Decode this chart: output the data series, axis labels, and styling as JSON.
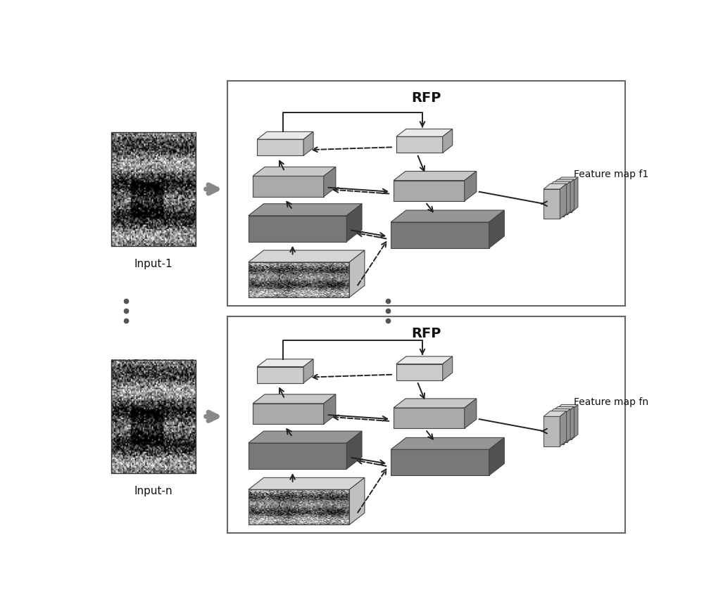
{
  "bg_color": "#ffffff",
  "panel_edge_color": "#666666",
  "panel_lw": 1.5,
  "rfp_title": "RFP",
  "rfp_fontsize": 14,
  "input1_label": "Input-1",
  "inputn_label": "Input-n",
  "fm1_label": "Feature map f1",
  "fmn_label": "Feature map fn",
  "label_fontsize": 11,
  "fm_label_fontsize": 10,
  "arrow_color": "#222222",
  "arrow_lw": 1.4,
  "gray_arrow_color": "#888888",
  "gray_arrow_lw": 5,
  "colors": {
    "level1_face": "#cccccc",
    "level1_top": "#e0e0e0",
    "level1_side": "#b0b0b0",
    "level2_face": "#aaaaaa",
    "level2_top": "#c5c5c5",
    "level2_side": "#8a8a8a",
    "level3_face": "#787878",
    "level3_top": "#999999",
    "level3_side": "#585858",
    "fm_face": "#b8b8b8",
    "fm_top": "#d0d0d0",
    "fm_side": "#999999"
  },
  "dots_color": "#555555"
}
